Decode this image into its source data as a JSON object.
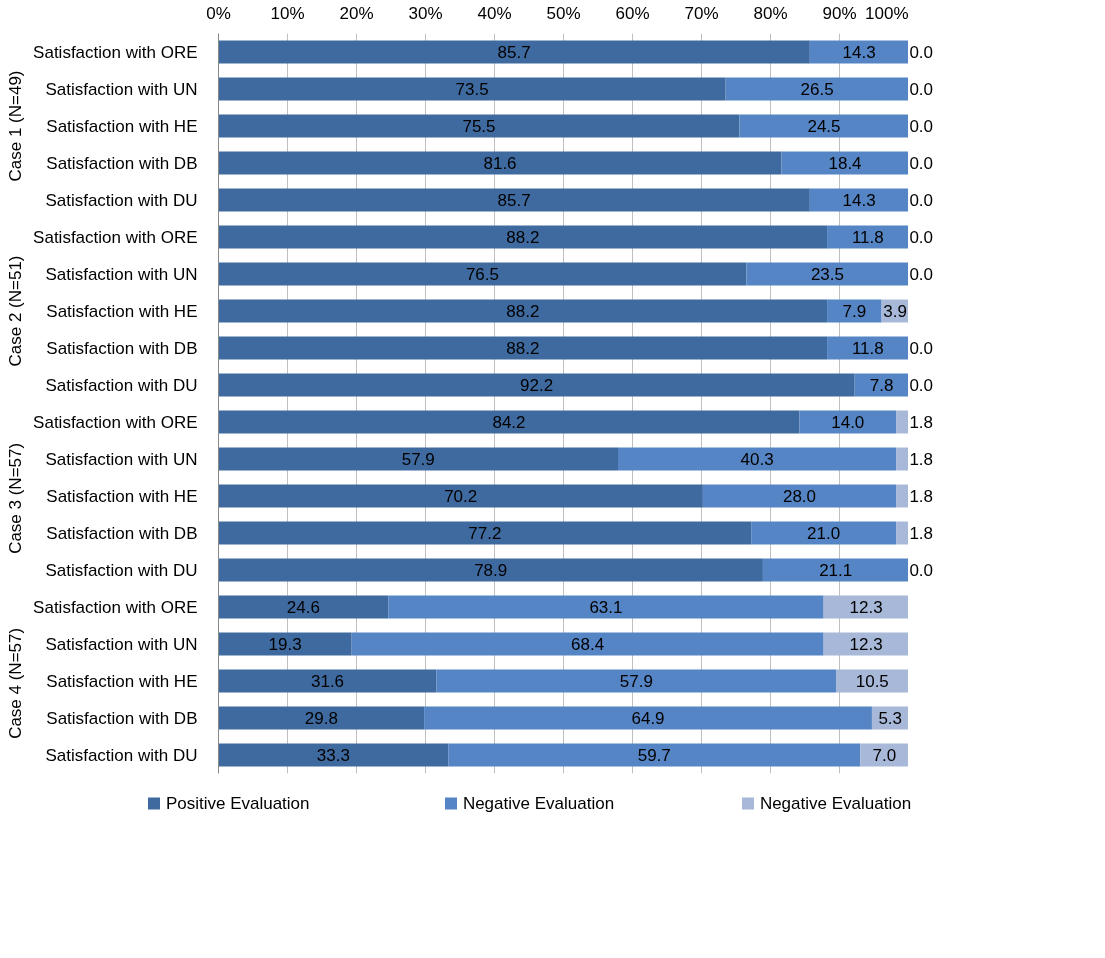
{
  "chart_data": {
    "type": "bar",
    "orientation": "horizontal",
    "stacked": true,
    "categories": [
      "Satisfaction with ORE",
      "Satisfaction with UN",
      "Satisfaction with HE",
      "Satisfaction with DB",
      "Satisfaction with DU",
      "Satisfaction with ORE",
      "Satisfaction with UN",
      "Satisfaction with HE",
      "Satisfaction with DB",
      "Satisfaction with DU",
      "Satisfaction with ORE",
      "Satisfaction with UN",
      "Satisfaction with HE",
      "Satisfaction with DB",
      "Satisfaction with DU",
      "Satisfaction with ORE",
      "Satisfaction with UN",
      "Satisfaction with HE",
      "Satisfaction with DB",
      "Satisfaction with DU"
    ],
    "series": [
      {
        "name": "Positive Evaluation",
        "color": "#3f6aa0",
        "values": [
          85.7,
          73.5,
          75.5,
          81.6,
          85.7,
          88.2,
          76.5,
          88.2,
          88.2,
          92.2,
          84.2,
          57.9,
          70.2,
          77.2,
          78.9,
          24.6,
          19.3,
          31.6,
          29.8,
          33.3
        ]
      },
      {
        "name": "Negative Evaluation",
        "color": "#5585c4",
        "values": [
          14.3,
          26.5,
          24.5,
          18.4,
          14.3,
          11.8,
          23.5,
          7.9,
          11.8,
          7.8,
          14.0,
          40.3,
          28.0,
          21.0,
          21.1,
          63.1,
          68.4,
          57.9,
          64.9,
          59.7
        ],
        "value_labels": [
          "14.3",
          "26.5",
          "24.5",
          "18.4",
          "14.3",
          "11.8",
          "23.5",
          "7.9",
          "11.8",
          "7.8",
          "14.0",
          "40.3",
          "28.0",
          "21.0",
          "21.1",
          "63.1",
          "68.4",
          "57.9",
          "64.9",
          "59.7"
        ]
      },
      {
        "name": "Negative Evaluation",
        "color": "#a8b8d8",
        "values": [
          0,
          0,
          0,
          0,
          0,
          0,
          0,
          3.9,
          0,
          0,
          1.8,
          1.8,
          1.8,
          1.8,
          0,
          12.3,
          12.3,
          10.5,
          5.3,
          7.0
        ],
        "value_labels": [
          "0.0",
          "0.0",
          "0.0",
          "0.0",
          "0.0",
          "0.0",
          "0.0",
          "3.9",
          "0.0",
          "0.0",
          "1.8",
          "1.8",
          "1.8",
          "1.8",
          "0.0",
          "12.3",
          "12.3",
          "10.5",
          "5.3",
          "7.0"
        ]
      }
    ],
    "annotations": [
      "Case 1 (N=49)",
      "Case 2 (N=51)",
      "Case 3  (N=57)",
      "Case 4  (N=57)"
    ],
    "xlim": [
      0,
      100
    ],
    "xticks": [
      {
        "value": 0,
        "label": "0%"
      },
      {
        "value": 10,
        "label": "10%"
      },
      {
        "value": 20,
        "label": "20%"
      },
      {
        "value": 30,
        "label": "30%"
      },
      {
        "value": 40,
        "label": "40%"
      },
      {
        "value": 50,
        "label": "50%"
      },
      {
        "value": 60,
        "label": "60%"
      },
      {
        "value": 70,
        "label": "70%"
      },
      {
        "value": 80,
        "label": "80%"
      },
      {
        "value": 90,
        "label": "90%"
      },
      {
        "value": 100,
        "label": "100%"
      }
    ],
    "data_labels": true,
    "grid": "x",
    "legend": "bottom"
  }
}
